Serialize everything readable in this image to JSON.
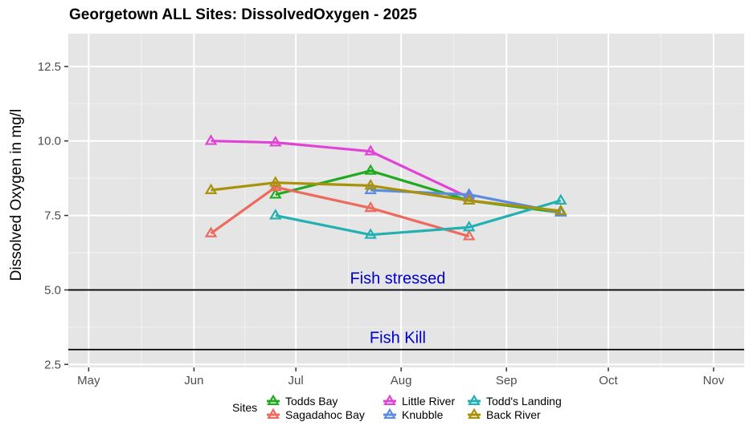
{
  "chart_data": {
    "type": "line",
    "title": "Georgetown ALL Sites: DissolvedOxygen - 2025",
    "xlabel": "",
    "ylabel": "Dissolved Oxygen in mg/l",
    "x_tick_labels": [
      "May",
      "Jun",
      "Jul",
      "Aug",
      "Sep",
      "Oct",
      "Nov"
    ],
    "y_ticks": [
      2.5,
      5.0,
      7.5,
      10.0,
      12.5
    ],
    "y_tick_labels": [
      "2.5",
      "5.0",
      "7.5",
      "10.0",
      "12.5"
    ],
    "ylim": [
      2.4,
      13.6
    ],
    "xlim": [
      "2025-04-25",
      "2025-11-10"
    ],
    "grid": true,
    "legend": {
      "title": "Sites",
      "position": "bottom"
    },
    "reference_lines": [
      {
        "y": 5.0,
        "label": "Fish stressed",
        "label_x": "2025-07-31"
      },
      {
        "y": 3.0,
        "label": "Fish Kill",
        "label_x": "2025-07-31"
      }
    ],
    "series": [
      {
        "name": "Todds Bay",
        "color": "#1faa1f",
        "points": [
          {
            "x": "2025-06-25",
            "y": 8.2
          },
          {
            "x": "2025-07-23",
            "y": 9.0
          },
          {
            "x": "2025-08-21",
            "y": 8.0
          },
          {
            "x": "2025-09-17",
            "y": 7.6
          }
        ]
      },
      {
        "name": "Sagadahoc Bay",
        "color": "#ec6a5e",
        "points": [
          {
            "x": "2025-06-06",
            "y": 6.9
          },
          {
            "x": "2025-06-25",
            "y": 8.45
          },
          {
            "x": "2025-07-23",
            "y": 7.75
          },
          {
            "x": "2025-08-21",
            "y": 6.8
          }
        ]
      },
      {
        "name": "Little River",
        "color": "#e044d6",
        "points": [
          {
            "x": "2025-06-06",
            "y": 10.0
          },
          {
            "x": "2025-06-25",
            "y": 9.95
          },
          {
            "x": "2025-07-23",
            "y": 9.65
          },
          {
            "x": "2025-08-21",
            "y": 8.1
          }
        ]
      },
      {
        "name": "Knubble",
        "color": "#5b8ce0",
        "points": [
          {
            "x": "2025-07-23",
            "y": 8.35
          },
          {
            "x": "2025-08-21",
            "y": 8.2
          },
          {
            "x": "2025-09-17",
            "y": 7.6
          }
        ]
      },
      {
        "name": "Todd's Landing",
        "color": "#22b0b0",
        "points": [
          {
            "x": "2025-06-25",
            "y": 7.5
          },
          {
            "x": "2025-07-23",
            "y": 6.85
          },
          {
            "x": "2025-08-21",
            "y": 7.1
          },
          {
            "x": "2025-09-17",
            "y": 8.0
          }
        ]
      },
      {
        "name": "Back River",
        "color": "#a8920a",
        "points": [
          {
            "x": "2025-06-06",
            "y": 8.35
          },
          {
            "x": "2025-06-25",
            "y": 8.6
          },
          {
            "x": "2025-07-23",
            "y": 8.5
          },
          {
            "x": "2025-08-21",
            "y": 8.0
          },
          {
            "x": "2025-09-17",
            "y": 7.65
          }
        ]
      }
    ]
  }
}
